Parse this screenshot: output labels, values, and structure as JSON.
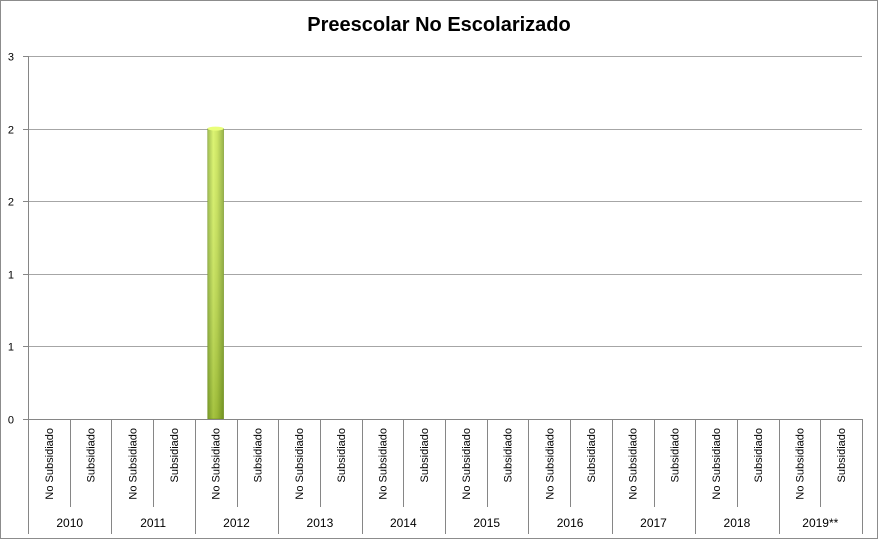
{
  "chart_data": {
    "type": "bar",
    "title": "Preescolar No Escolarizado",
    "xlabel": "",
    "ylabel": "",
    "ylim": [
      0,
      2.5
    ],
    "yticks": [
      0,
      0.5,
      1,
      1.5,
      2,
      2.5
    ],
    "ytick_labels": [
      "0",
      "1",
      "1",
      "2",
      "2",
      "3"
    ],
    "grid": true,
    "groups": [
      "2010",
      "2011",
      "2012",
      "2013",
      "2014",
      "2015",
      "2016",
      "2017",
      "2018",
      "2019**"
    ],
    "subcategories": [
      "No Subsidiado",
      "Subsidiado"
    ],
    "categories": [
      "2010 No Subsidiado",
      "2010 Subsidiado",
      "2011 No Subsidiado",
      "2011 Subsidiado",
      "2012 No Subsidiado",
      "2012 Subsidiado",
      "2013 No Subsidiado",
      "2013 Subsidiado",
      "2014 No Subsidiado",
      "2014 Subsidiado",
      "2015 No Subsidiado",
      "2015 Subsidiado",
      "2016 No Subsidiado",
      "2016 Subsidiado",
      "2017 No Subsidiado",
      "2017 Subsidiado",
      "2018 No Subsidiado",
      "2018 Subsidiado",
      "2019** No Subsidiado",
      "2019** Subsidiado"
    ],
    "values": [
      0,
      0,
      0,
      0,
      2,
      0,
      0,
      0,
      0,
      0,
      0,
      0,
      0,
      0,
      0,
      0,
      0,
      0,
      0,
      0
    ],
    "bar_color": "#c4e04a",
    "legend": "none"
  }
}
